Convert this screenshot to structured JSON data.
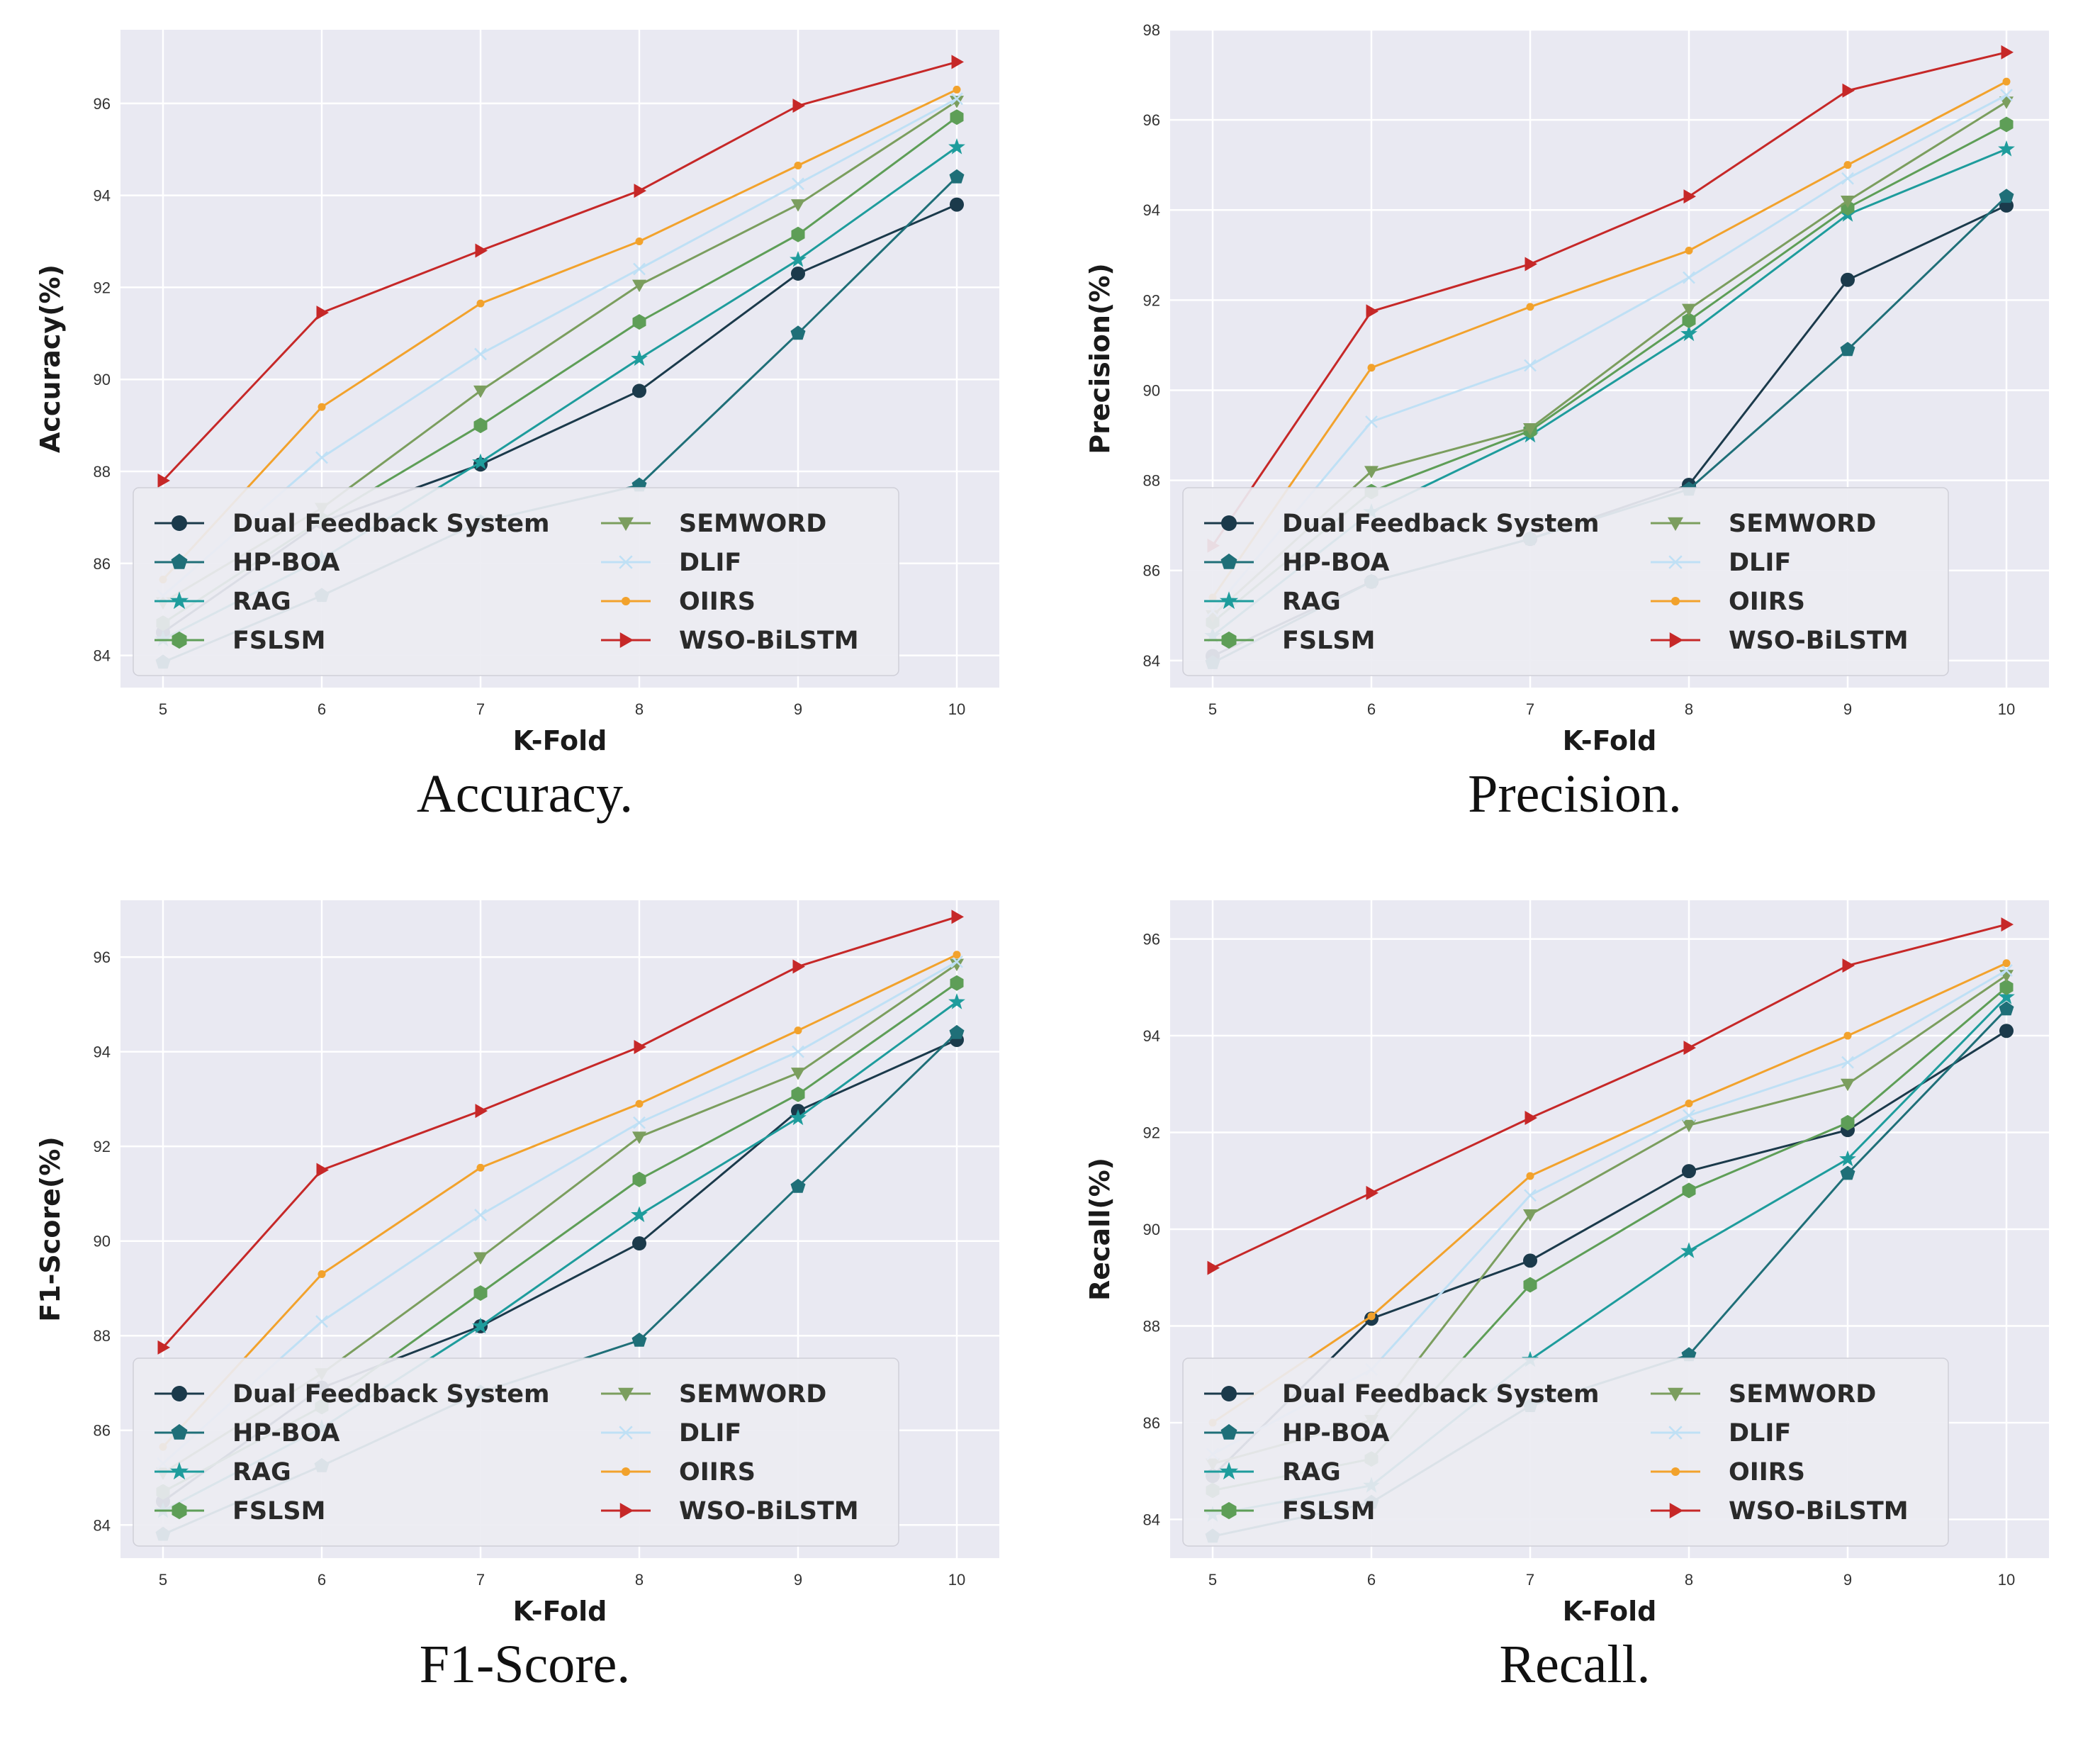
{
  "chart_data": [
    {
      "type": "line",
      "caption": "Accuracy.",
      "xlabel": "K-Fold",
      "ylabel": "Accuracy(%)",
      "x": [
        5,
        6,
        7,
        8,
        9,
        10
      ],
      "ylim": [
        83.3,
        97.6
      ],
      "yticks": [
        84,
        86,
        88,
        90,
        92,
        94,
        96
      ],
      "legend_location": "lower-left",
      "series": [
        {
          "name": "Dual Feedback System",
          "color": "#1b3a4b",
          "marker": "circle",
          "values": [
            84.5,
            86.9,
            88.15,
            89.75,
            92.3,
            93.8
          ]
        },
        {
          "name": "HP-BOA",
          "color": "#1f6f78",
          "marker": "pentagon",
          "values": [
            83.85,
            85.3,
            86.9,
            87.7,
            91.0,
            94.4
          ]
        },
        {
          "name": "RAG",
          "color": "#1e9c9c",
          "marker": "star",
          "values": [
            84.35,
            86.1,
            88.2,
            90.45,
            92.6,
            95.05
          ]
        },
        {
          "name": "FSLSM",
          "color": "#5e9e57",
          "marker": "hexagon",
          "values": [
            84.7,
            86.95,
            89.0,
            91.25,
            93.15,
            95.7
          ]
        },
        {
          "name": "SEMWORD",
          "color": "#7b9e5e",
          "marker": "triangle-down",
          "values": [
            85.15,
            87.2,
            89.75,
            92.05,
            93.8,
            96.05
          ]
        },
        {
          "name": "DLIF",
          "color": "#bfe0f5",
          "marker": "x",
          "values": [
            85.3,
            88.3,
            90.55,
            92.4,
            94.25,
            96.1
          ]
        },
        {
          "name": "OIIRS",
          "color": "#f2a22c",
          "marker": "dot",
          "values": [
            85.65,
            89.4,
            91.65,
            93.0,
            94.65,
            96.3
          ]
        },
        {
          "name": "WSO-BiLSTM",
          "color": "#c62828",
          "marker": "triangle-right",
          "values": [
            87.8,
            91.45,
            92.8,
            94.1,
            95.95,
            96.9
          ]
        }
      ]
    },
    {
      "type": "line",
      "caption": "Precision.",
      "xlabel": "K-Fold",
      "ylabel": "Precision(%)",
      "x": [
        5,
        6,
        7,
        8,
        9,
        10
      ],
      "ylim": [
        83.4,
        98.0
      ],
      "yticks": [
        84,
        86,
        88,
        90,
        92,
        94,
        96,
        98
      ],
      "legend_location": "lower-left",
      "series": [
        {
          "name": "Dual Feedback System",
          "color": "#1b3a4b",
          "marker": "circle",
          "values": [
            84.1,
            85.75,
            86.7,
            87.9,
            92.45,
            94.1
          ]
        },
        {
          "name": "HP-BOA",
          "color": "#1f6f78",
          "marker": "pentagon",
          "values": [
            83.95,
            85.75,
            86.7,
            87.8,
            90.9,
            94.3
          ]
        },
        {
          "name": "RAG",
          "color": "#1e9c9c",
          "marker": "star",
          "values": [
            84.55,
            87.3,
            89.0,
            91.25,
            93.9,
            95.35
          ]
        },
        {
          "name": "FSLSM",
          "color": "#5e9e57",
          "marker": "hexagon",
          "values": [
            84.85,
            87.75,
            89.1,
            91.55,
            94.05,
            95.9
          ]
        },
        {
          "name": "SEMWORD",
          "color": "#7b9e5e",
          "marker": "triangle-down",
          "values": [
            85.0,
            88.2,
            89.15,
            91.8,
            94.2,
            96.4
          ]
        },
        {
          "name": "DLIF",
          "color": "#bfe0f5",
          "marker": "x",
          "values": [
            85.1,
            89.3,
            90.55,
            92.5,
            94.7,
            96.55
          ]
        },
        {
          "name": "OIIRS",
          "color": "#f2a22c",
          "marker": "dot",
          "values": [
            85.4,
            90.5,
            91.85,
            93.1,
            95.0,
            96.85
          ]
        },
        {
          "name": "WSO-BiLSTM",
          "color": "#c62828",
          "marker": "triangle-right",
          "values": [
            86.55,
            91.75,
            92.8,
            94.3,
            96.65,
            97.5
          ]
        }
      ]
    },
    {
      "type": "line",
      "caption": "F1-Score.",
      "xlabel": "K-Fold",
      "ylabel": "F1-Score(%)",
      "x": [
        5,
        6,
        7,
        8,
        9,
        10
      ],
      "ylim": [
        83.3,
        97.2
      ],
      "yticks": [
        84,
        86,
        88,
        90,
        92,
        94,
        96
      ],
      "legend_location": "lower-left",
      "series": [
        {
          "name": "Dual Feedback System",
          "color": "#1b3a4b",
          "marker": "circle",
          "values": [
            84.5,
            86.9,
            88.2,
            89.95,
            92.75,
            94.25
          ]
        },
        {
          "name": "HP-BOA",
          "color": "#1f6f78",
          "marker": "pentagon",
          "values": [
            83.8,
            85.25,
            86.8,
            87.9,
            91.15,
            94.4
          ]
        },
        {
          "name": "RAG",
          "color": "#1e9c9c",
          "marker": "star",
          "values": [
            84.3,
            86.05,
            88.2,
            90.55,
            92.6,
            95.05
          ]
        },
        {
          "name": "FSLSM",
          "color": "#5e9e57",
          "marker": "hexagon",
          "values": [
            84.7,
            86.5,
            88.9,
            91.3,
            93.1,
            95.45
          ]
        },
        {
          "name": "SEMWORD",
          "color": "#7b9e5e",
          "marker": "triangle-down",
          "values": [
            85.1,
            87.2,
            89.65,
            92.2,
            93.55,
            95.85
          ]
        },
        {
          "name": "DLIF",
          "color": "#bfe0f5",
          "marker": "x",
          "values": [
            85.3,
            88.3,
            90.55,
            92.5,
            94.0,
            95.9
          ]
        },
        {
          "name": "OIIRS",
          "color": "#f2a22c",
          "marker": "dot",
          "values": [
            85.65,
            89.3,
            91.55,
            92.9,
            94.45,
            96.05
          ]
        },
        {
          "name": "WSO-BiLSTM",
          "color": "#c62828",
          "marker": "triangle-right",
          "values": [
            87.75,
            91.5,
            92.75,
            94.1,
            95.8,
            96.85
          ]
        }
      ]
    },
    {
      "type": "line",
      "caption": "Recall.",
      "xlabel": "K-Fold",
      "ylabel": "Recall(%)",
      "x": [
        5,
        6,
        7,
        8,
        9,
        10
      ],
      "ylim": [
        83.2,
        96.8
      ],
      "yticks": [
        84,
        86,
        88,
        90,
        92,
        94,
        96
      ],
      "legend_location": "lower-left",
      "series": [
        {
          "name": "Dual Feedback System",
          "color": "#1b3a4b",
          "marker": "circle",
          "values": [
            84.9,
            88.15,
            89.35,
            91.2,
            92.05,
            94.1
          ]
        },
        {
          "name": "HP-BOA",
          "color": "#1f6f78",
          "marker": "pentagon",
          "values": [
            83.65,
            84.35,
            86.35,
            87.4,
            91.15,
            94.55
          ]
        },
        {
          "name": "RAG",
          "color": "#1e9c9c",
          "marker": "star",
          "values": [
            84.1,
            84.7,
            87.3,
            89.55,
            91.45,
            94.8
          ]
        },
        {
          "name": "FSLSM",
          "color": "#5e9e57",
          "marker": "hexagon",
          "values": [
            84.6,
            85.25,
            88.85,
            90.8,
            92.2,
            95.0
          ]
        },
        {
          "name": "SEMWORD",
          "color": "#7b9e5e",
          "marker": "triangle-down",
          "values": [
            85.15,
            86.05,
            90.3,
            92.15,
            93.0,
            95.25
          ]
        },
        {
          "name": "DLIF",
          "color": "#bfe0f5",
          "marker": "x",
          "values": [
            85.35,
            87.1,
            90.7,
            92.35,
            93.45,
            95.35
          ]
        },
        {
          "name": "OIIRS",
          "color": "#f2a22c",
          "marker": "dot",
          "values": [
            86.0,
            88.2,
            91.1,
            92.6,
            94.0,
            95.5
          ]
        },
        {
          "name": "WSO-BiLSTM",
          "color": "#c62828",
          "marker": "triangle-right",
          "values": [
            89.2,
            90.75,
            92.3,
            93.75,
            95.45,
            96.3
          ]
        }
      ]
    }
  ]
}
